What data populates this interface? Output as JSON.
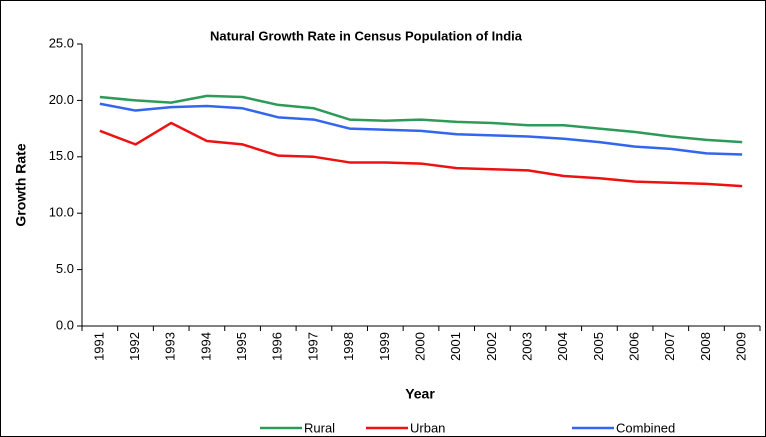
{
  "chart_data": {
    "type": "line",
    "title": "Natural Growth Rate in Census Population of India",
    "x_label": "Year",
    "y_label": "Growth Rate",
    "categories": [
      "1991",
      "1992",
      "1993",
      "1994",
      "1995",
      "1996",
      "1997",
      "1998",
      "1999",
      "2000",
      "2001",
      "2002",
      "2003",
      "2004",
      "2005",
      "2006",
      "2007",
      "2008",
      "2009"
    ],
    "series": [
      {
        "name": "Rural",
        "color": "#2e9a5a",
        "values": [
          20.3,
          20.0,
          19.8,
          20.4,
          20.3,
          19.6,
          19.3,
          18.3,
          18.2,
          18.3,
          18.1,
          18.0,
          17.8,
          17.8,
          17.5,
          17.2,
          16.8,
          16.5,
          16.3
        ]
      },
      {
        "name": "Urban",
        "color": "#ee1111",
        "values": [
          17.3,
          16.1,
          18.0,
          16.4,
          16.1,
          15.1,
          15.0,
          14.5,
          14.5,
          14.4,
          14.0,
          13.9,
          13.8,
          13.3,
          13.1,
          12.8,
          12.7,
          12.6,
          12.4
        ]
      },
      {
        "name": "Combined",
        "color": "#3366ee",
        "values": [
          19.7,
          19.1,
          19.4,
          19.5,
          19.3,
          18.5,
          18.3,
          17.5,
          17.4,
          17.3,
          17.0,
          16.9,
          16.8,
          16.6,
          16.3,
          15.9,
          15.7,
          15.3,
          15.2
        ]
      }
    ],
    "ylim": [
      0,
      25
    ],
    "yticks": [
      {
        "value": 0,
        "label": "0.0"
      },
      {
        "value": 5,
        "label": "5.0"
      },
      {
        "value": 10,
        "label": "10.0"
      },
      {
        "value": 15,
        "label": "15.0"
      },
      {
        "value": 20,
        "label": "20.0"
      },
      {
        "value": 25,
        "label": "25.0"
      }
    ],
    "legend": "bottom"
  }
}
